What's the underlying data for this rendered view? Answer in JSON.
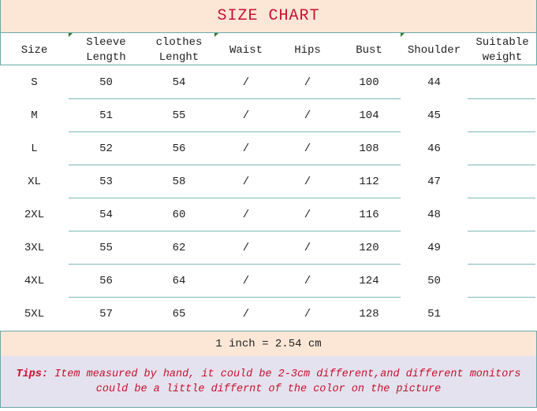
{
  "title": "SIZE CHART",
  "headers": [
    [
      "Size",
      ""
    ],
    [
      "Sleeve",
      "Length"
    ],
    [
      "clothes",
      "Lenght"
    ],
    [
      "Waist",
      ""
    ],
    [
      "Hips",
      ""
    ],
    [
      "Bust",
      ""
    ],
    [
      "Shoulder",
      ""
    ],
    [
      "Suitable",
      "weight"
    ]
  ],
  "rows": [
    [
      "S",
      "50",
      "54",
      "/",
      "/",
      "100",
      "44",
      ""
    ],
    [
      "M",
      "51",
      "55",
      "/",
      "/",
      "104",
      "45",
      ""
    ],
    [
      "L",
      "52",
      "56",
      "/",
      "/",
      "108",
      "46",
      ""
    ],
    [
      "XL",
      "53",
      "58",
      "/",
      "/",
      "112",
      "47",
      ""
    ],
    [
      "2XL",
      "54",
      "60",
      "/",
      "/",
      "116",
      "48",
      ""
    ],
    [
      "3XL",
      "55",
      "62",
      "/",
      "/",
      "120",
      "49",
      ""
    ],
    [
      "4XL",
      "56",
      "64",
      "/",
      "/",
      "124",
      "50",
      ""
    ],
    [
      "5XL",
      "57",
      "65",
      "/",
      "/",
      "128",
      "51",
      ""
    ]
  ],
  "conversion": "1 inch = 2.54 cm",
  "tips": {
    "label": "Tips:",
    "line1": "Item measured by hand, it could be 2-3cm different,and different monitors",
    "line2": "could be a little differnt of the color on the picture"
  },
  "colors": {
    "title_text": "#c8102e",
    "band_bg": "#fce6d6",
    "tips_bg": "#e4e2ee",
    "border": "#6aa8a8"
  }
}
